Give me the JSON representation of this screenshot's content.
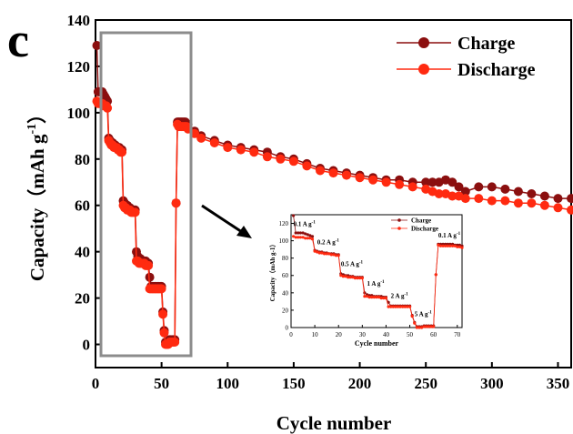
{
  "panel_label": "c",
  "colors": {
    "charge": "#8b0f0f",
    "discharge": "#ff2a10",
    "box": "#8c8c8c",
    "arrow": "#000000"
  },
  "chart_data": [
    {
      "type": "line",
      "xlabel": "Cycle number",
      "ylabel_main": "Capacity（mAh g",
      "ylabel_sup": "-1",
      "ylabel_end": "）",
      "xlim": [
        0,
        360
      ],
      "ylim": [
        -10,
        140
      ],
      "xticks": [
        0,
        50,
        100,
        150,
        200,
        250,
        300,
        350
      ],
      "yticks": [
        0,
        20,
        40,
        60,
        80,
        100,
        120,
        140
      ],
      "legend_position": "top-right",
      "series": [
        {
          "name": "Charge",
          "x": [
            1,
            2,
            3,
            4,
            5,
            6,
            7,
            8,
            9,
            10,
            11,
            12,
            13,
            14,
            15,
            16,
            17,
            18,
            19,
            20,
            21,
            22,
            23,
            24,
            25,
            26,
            27,
            28,
            29,
            30,
            31,
            32,
            33,
            34,
            35,
            36,
            37,
            38,
            39,
            40,
            41,
            42,
            43,
            44,
            45,
            46,
            47,
            48,
            49,
            50,
            51,
            52,
            53,
            54,
            55,
            56,
            57,
            58,
            59,
            60,
            61,
            62,
            63,
            64,
            65,
            66,
            67,
            68,
            69,
            70,
            75,
            80,
            90,
            100,
            110,
            120,
            130,
            140,
            150,
            160,
            170,
            180,
            190,
            200,
            210,
            220,
            230,
            240,
            250,
            255,
            260,
            265,
            270,
            275,
            280,
            290,
            300,
            310,
            320,
            330,
            340,
            350,
            360
          ],
          "y": [
            129,
            109,
            109,
            109,
            109,
            108,
            107,
            106,
            105,
            89,
            88,
            87,
            87,
            86,
            86,
            85,
            85,
            85,
            84,
            84,
            62,
            61,
            60,
            60,
            59,
            59,
            58,
            58,
            58,
            58,
            40,
            38,
            37,
            37,
            36,
            36,
            36,
            36,
            35,
            35,
            29,
            25,
            25,
            25,
            25,
            25,
            25,
            25,
            25,
            25,
            14,
            6,
            1,
            1,
            1,
            2,
            2,
            2,
            2,
            2,
            61,
            96,
            96,
            96,
            96,
            96,
            96,
            96,
            95,
            95,
            92,
            90,
            88,
            86,
            85,
            84,
            83,
            81,
            80,
            78,
            76,
            75,
            74,
            73,
            72,
            71,
            71,
            70,
            70,
            70,
            70,
            71,
            70,
            68,
            66,
            68,
            68,
            67,
            66,
            65,
            64,
            63,
            63
          ]
        },
        {
          "name": "Discharge",
          "x": [
            1,
            2,
            3,
            4,
            5,
            6,
            7,
            8,
            9,
            10,
            11,
            12,
            13,
            14,
            15,
            16,
            17,
            18,
            19,
            20,
            21,
            22,
            23,
            24,
            25,
            26,
            27,
            28,
            29,
            30,
            31,
            32,
            33,
            34,
            35,
            36,
            37,
            38,
            39,
            40,
            41,
            42,
            43,
            44,
            45,
            46,
            47,
            48,
            49,
            50,
            51,
            52,
            53,
            54,
            55,
            56,
            57,
            58,
            59,
            60,
            61,
            62,
            63,
            64,
            65,
            66,
            67,
            68,
            69,
            70,
            75,
            80,
            90,
            100,
            110,
            120,
            130,
            140,
            150,
            160,
            170,
            180,
            190,
            200,
            210,
            220,
            230,
            240,
            250,
            255,
            260,
            265,
            270,
            275,
            280,
            290,
            300,
            310,
            320,
            330,
            340,
            350,
            360
          ],
          "y": [
            105,
            104,
            104,
            104,
            104,
            103,
            103,
            103,
            102,
            88,
            87,
            86,
            86,
            85,
            85,
            85,
            84,
            84,
            83,
            83,
            60,
            59,
            59,
            58,
            58,
            58,
            57,
            57,
            57,
            57,
            36,
            36,
            35,
            35,
            35,
            35,
            35,
            34,
            34,
            34,
            24,
            24,
            24,
            24,
            24,
            24,
            24,
            24,
            24,
            24,
            13,
            5,
            0,
            0,
            0,
            1,
            1,
            1,
            1,
            1,
            61,
            95,
            94,
            94,
            94,
            94,
            94,
            94,
            94,
            93,
            91,
            89,
            87,
            85,
            84,
            83,
            81,
            80,
            79,
            77,
            75,
            74,
            73,
            72,
            71,
            70,
            69,
            68,
            67,
            66,
            65,
            65,
            64,
            64,
            63,
            63,
            62,
            62,
            61,
            61,
            60,
            59,
            58
          ]
        }
      ]
    },
    {
      "type": "line",
      "xlabel": "Cycle number",
      "ylabel": "Capacity（mAh g-1）",
      "xlim": [
        0,
        72
      ],
      "ylim": [
        0,
        130
      ],
      "xticks": [
        0,
        10,
        20,
        30,
        40,
        50,
        60,
        70
      ],
      "yticks": [
        0,
        20,
        40,
        60,
        80,
        100,
        120
      ],
      "annotations": [
        {
          "text": "0.1 A g",
          "sup": "-1",
          "x": 1,
          "y": 117
        },
        {
          "text": "0.2 A g",
          "sup": "-1",
          "x": 11,
          "y": 96
        },
        {
          "text": "0.5 A g",
          "sup": "-1",
          "x": 21,
          "y": 71
        },
        {
          "text": "1 A g",
          "sup": "-1",
          "x": 32,
          "y": 48
        },
        {
          "text": "2 A g",
          "sup": "-1",
          "x": 42,
          "y": 34
        },
        {
          "text": "5 A g",
          "sup": "-1",
          "x": 52,
          "y": 13
        },
        {
          "text": "0.1 A g",
          "sup": "-1",
          "x": 62,
          "y": 104
        }
      ],
      "legend_position": "top-right",
      "series": [
        {
          "name": "Charge",
          "x": [
            1,
            2,
            3,
            4,
            5,
            6,
            7,
            8,
            9,
            10,
            11,
            12,
            13,
            14,
            15,
            16,
            17,
            18,
            19,
            20,
            21,
            22,
            23,
            24,
            25,
            26,
            27,
            28,
            29,
            30,
            31,
            32,
            33,
            34,
            35,
            36,
            37,
            38,
            39,
            40,
            41,
            42,
            43,
            44,
            45,
            46,
            47,
            48,
            49,
            50,
            51,
            52,
            53,
            54,
            55,
            56,
            57,
            58,
            59,
            60,
            61,
            62,
            63,
            64,
            65,
            66,
            67,
            68,
            69,
            70,
            71,
            72
          ],
          "y": [
            129,
            109,
            109,
            109,
            109,
            108,
            107,
            106,
            105,
            89,
            88,
            87,
            87,
            86,
            86,
            85,
            85,
            85,
            84,
            84,
            62,
            61,
            60,
            60,
            59,
            59,
            58,
            58,
            58,
            58,
            40,
            38,
            37,
            37,
            36,
            36,
            36,
            36,
            35,
            35,
            29,
            25,
            25,
            25,
            25,
            25,
            25,
            25,
            25,
            25,
            14,
            6,
            1,
            1,
            1,
            2,
            2,
            2,
            2,
            2,
            61,
            96,
            96,
            96,
            96,
            96,
            96,
            96,
            95,
            95,
            95,
            94
          ]
        },
        {
          "name": "Discharge",
          "x": [
            1,
            2,
            3,
            4,
            5,
            6,
            7,
            8,
            9,
            10,
            11,
            12,
            13,
            14,
            15,
            16,
            17,
            18,
            19,
            20,
            21,
            22,
            23,
            24,
            25,
            26,
            27,
            28,
            29,
            30,
            31,
            32,
            33,
            34,
            35,
            36,
            37,
            38,
            39,
            40,
            41,
            42,
            43,
            44,
            45,
            46,
            47,
            48,
            49,
            50,
            51,
            52,
            53,
            54,
            55,
            56,
            57,
            58,
            59,
            60,
            61,
            62,
            63,
            64,
            65,
            66,
            67,
            68,
            69,
            70,
            71,
            72
          ],
          "y": [
            105,
            104,
            104,
            104,
            104,
            103,
            103,
            103,
            102,
            88,
            87,
            86,
            86,
            85,
            85,
            85,
            84,
            84,
            83,
            83,
            60,
            59,
            59,
            58,
            58,
            58,
            57,
            57,
            57,
            57,
            36,
            36,
            35,
            35,
            35,
            35,
            35,
            34,
            34,
            34,
            24,
            24,
            24,
            24,
            24,
            24,
            24,
            24,
            24,
            24,
            13,
            5,
            0,
            0,
            0,
            1,
            1,
            1,
            1,
            1,
            61,
            95,
            94,
            94,
            94,
            94,
            94,
            94,
            94,
            93,
            93,
            92
          ]
        }
      ]
    }
  ]
}
